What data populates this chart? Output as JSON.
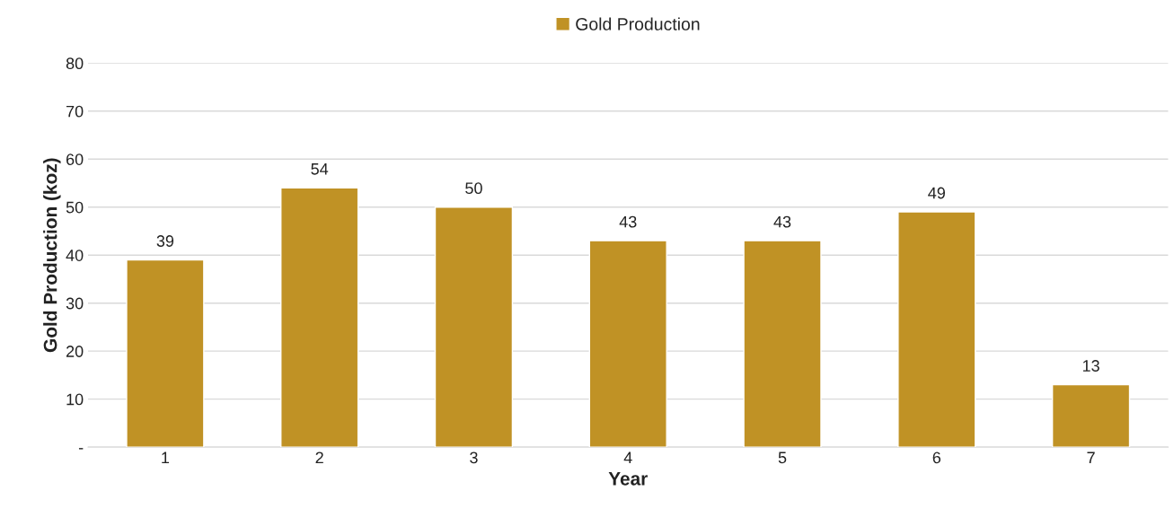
{
  "chart_data": {
    "type": "bar",
    "xlabel": "Year",
    "ylabel": "Gold Production (koz)",
    "categories": [
      "1",
      "2",
      "3",
      "4",
      "5",
      "6",
      "7"
    ],
    "series": [
      {
        "name": "Gold Production",
        "color": "#c09225",
        "values": [
          39,
          54,
          50,
          43,
          43,
          49,
          13
        ]
      }
    ],
    "ylim": [
      0,
      80
    ],
    "yticks": [
      {
        "value": 0,
        "label": "-"
      },
      10,
      20,
      30,
      40,
      50,
      60,
      70,
      80
    ],
    "grid": "y",
    "legend": "top",
    "data_labels": true
  }
}
